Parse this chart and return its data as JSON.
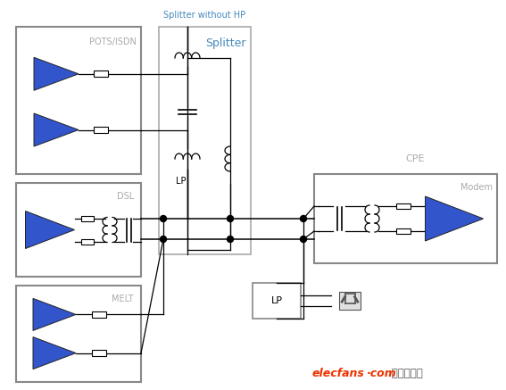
{
  "bg_color": "#ffffff",
  "box_edge_color": "#888888",
  "wire_color": "#000000",
  "blue_color": "#3355cc",
  "label_gray": "#aaaaaa",
  "splitter_blue": "#4488bb",
  "orange": "#ee3300",
  "dark_gray": "#555555",
  "labels": {
    "pots": "POTS/ISDN",
    "dsl": "DSL",
    "melt": "MELT",
    "splitter": "Splitter",
    "splitter_hp": "Splitter without HP",
    "lp": "LP",
    "cpe": "CPE",
    "modem": "Modem"
  }
}
